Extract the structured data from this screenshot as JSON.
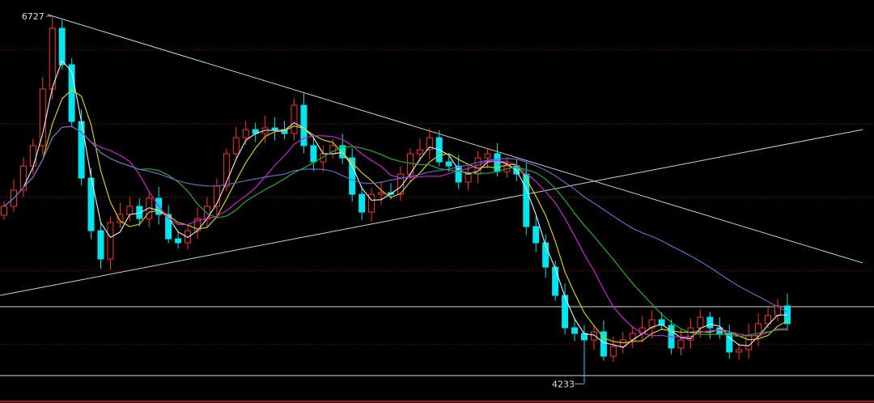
{
  "chart_data": {
    "type": "candlestick",
    "ylim": [
      4103,
      6837
    ],
    "grid": {
      "on": true,
      "style": "dotted",
      "color": "#8b0000",
      "levels": [
        6500,
        6000,
        5500,
        5000,
        4500
      ]
    },
    "colors": {
      "up": "#ff3030",
      "down": "#00e5ee",
      "background": "#000000",
      "ma": [
        "#e0e0e0",
        "#d0d000",
        "#d020d0",
        "#20b020",
        "#6868c8"
      ]
    },
    "close": [
      5437,
      5547,
      5711,
      5849,
      6233,
      6645,
      6398,
      6013,
      5629,
      5272,
      5080,
      5327,
      5382,
      5437,
      5354,
      5492,
      5382,
      5217,
      5190,
      5272,
      5354,
      5437,
      5574,
      5794,
      5903,
      5958,
      5931,
      5969,
      5958,
      5931,
      6123,
      5849,
      5739,
      5794,
      5849,
      5766,
      5519,
      5398,
      5519,
      5530,
      5519,
      5656,
      5794,
      5821,
      5903,
      5739,
      5711,
      5602,
      5656,
      5766,
      5794,
      5673,
      5711,
      5656,
      5300,
      5190,
      5025,
      4833,
      4613,
      4575,
      4531,
      4586,
      4421,
      4487,
      4531,
      4575,
      4613,
      4668,
      4630,
      4476,
      4531,
      4613,
      4685,
      4613,
      4575,
      4449,
      4465,
      4558,
      4641,
      4696,
      4762,
      4641
    ],
    "max_marker": {
      "value": 6727,
      "label": "6727",
      "candle": 5
    },
    "min_marker": {
      "value": 4233,
      "label": "4233",
      "candle": 60
    },
    "horizontal_lines": [
      4756,
      4289
    ],
    "trendlines": [
      {
        "from": [
          4.5,
          6738
        ],
        "to": [
          88.8,
          5053
        ]
      },
      {
        "from": [
          -0.4,
          4833
        ],
        "to": [
          88.8,
          5958
        ]
      }
    ]
  }
}
